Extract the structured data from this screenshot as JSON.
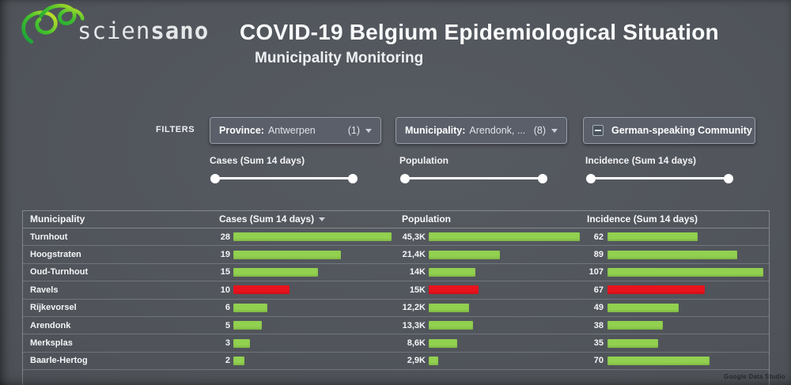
{
  "header": {
    "logo": {
      "text_regular": "scien",
      "text_bold": "sano"
    },
    "title": "COVID-19 Belgium Epidemiological Situation",
    "subtitle": "Municipality Monitoring"
  },
  "filters": {
    "section_label": "FILTERS",
    "province": {
      "label": "Province:",
      "value": "Antwerpen",
      "count": "(1)"
    },
    "municipality": {
      "label": "Municipality:",
      "value": "Arendonk, ...",
      "count": "(8)"
    },
    "community": {
      "label": "German-speaking Community",
      "checkbox_state": "indeterminate"
    }
  },
  "sliders": {
    "cases_label": "Cases (Sum 14 days)",
    "population_label": "Population",
    "incidence_label": "Incidence (Sum 14 days)"
  },
  "table": {
    "headers": {
      "municipality": "Municipality",
      "cases": "Cases (Sum 14 days)",
      "population": "Population",
      "incidence": "Incidence (Sum 14 days)"
    },
    "sorted_by": "cases",
    "sort_direction": "desc",
    "max": {
      "cases": 28,
      "population": 45.3,
      "incidence": 107
    },
    "rows": [
      {
        "name": "Turnhout",
        "cases": {
          "label": "28",
          "value": 28
        },
        "population": {
          "label": "45,3K",
          "value": 45.3
        },
        "incidence": {
          "label": "62",
          "value": 62
        },
        "status": "normal"
      },
      {
        "name": "Hoogstraten",
        "cases": {
          "label": "19",
          "value": 19
        },
        "population": {
          "label": "21,4K",
          "value": 21.4
        },
        "incidence": {
          "label": "89",
          "value": 89
        },
        "status": "normal"
      },
      {
        "name": "Oud-Turnhout",
        "cases": {
          "label": "15",
          "value": 15
        },
        "population": {
          "label": "14K",
          "value": 14
        },
        "incidence": {
          "label": "107",
          "value": 107
        },
        "status": "normal"
      },
      {
        "name": "Ravels",
        "cases": {
          "label": "10",
          "value": 10
        },
        "population": {
          "label": "15K",
          "value": 15
        },
        "incidence": {
          "label": "67",
          "value": 67
        },
        "status": "alert"
      },
      {
        "name": "Rijkevorsel",
        "cases": {
          "label": "6",
          "value": 6
        },
        "population": {
          "label": "12,2K",
          "value": 12.2
        },
        "incidence": {
          "label": "49",
          "value": 49
        },
        "status": "normal"
      },
      {
        "name": "Arendonk",
        "cases": {
          "label": "5",
          "value": 5
        },
        "population": {
          "label": "13,3K",
          "value": 13.3
        },
        "incidence": {
          "label": "38",
          "value": 38
        },
        "status": "normal"
      },
      {
        "name": "Merksplas",
        "cases": {
          "label": "3",
          "value": 3
        },
        "population": {
          "label": "8,6K",
          "value": 8.6
        },
        "incidence": {
          "label": "35",
          "value": 35
        },
        "status": "normal"
      },
      {
        "name": "Baarle-Hertog",
        "cases": {
          "label": "2",
          "value": 2
        },
        "population": {
          "label": "2,9K",
          "value": 2.9
        },
        "incidence": {
          "label": "70",
          "value": 70
        },
        "status": "normal"
      }
    ]
  },
  "chart_data": {
    "type": "table",
    "title": "Municipality Monitoring",
    "categories": [
      "Turnhout",
      "Hoogstraten",
      "Oud-Turnhout",
      "Ravels",
      "Rijkevorsel",
      "Arendonk",
      "Merksplas",
      "Baarle-Hertog"
    ],
    "series": [
      {
        "name": "Cases (Sum 14 days)",
        "values": [
          28,
          19,
          15,
          10,
          6,
          5,
          3,
          2
        ]
      },
      {
        "name": "Population",
        "values": [
          45300,
          21400,
          14000,
          15000,
          12200,
          13300,
          8600,
          2900
        ]
      },
      {
        "name": "Incidence (Sum 14 days)",
        "values": [
          62,
          89,
          107,
          67,
          49,
          38,
          35,
          70
        ]
      }
    ],
    "highlighted_row": "Ravels",
    "bar_color_normal": "#92d050",
    "bar_color_alert": "#e9131d"
  },
  "footer": {
    "attribution": "Google Data Studio"
  },
  "colors": {
    "bar_positive": "#92d050",
    "bar_alert": "#e9131d",
    "background": "#4f5359",
    "panel": "#5a5f69"
  }
}
